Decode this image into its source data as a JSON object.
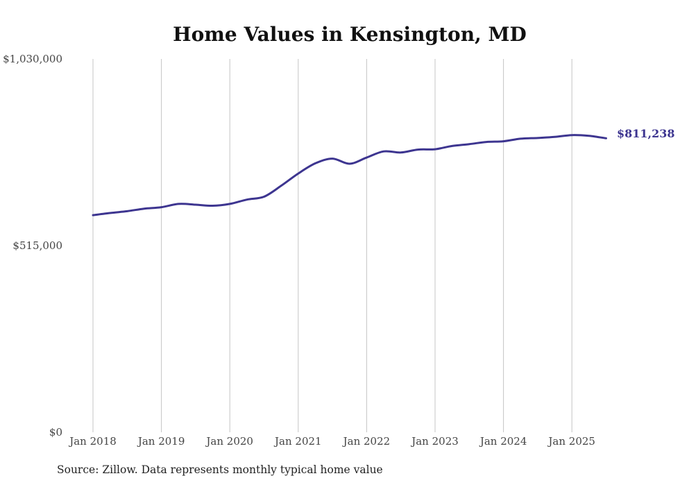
{
  "colors": {
    "line": "#3d3590",
    "grid": "#c4c4c4",
    "text": "#444444",
    "title": "#111111"
  },
  "chart_data": {
    "type": "line",
    "title": "Home Values in Kensington, MD",
    "xlabel": "",
    "ylabel": "",
    "ylim": [
      0,
      1030000
    ],
    "yticks": [
      0,
      515000,
      1030000
    ],
    "ytick_labels": [
      "$0",
      "$515,000",
      "$1,030,000"
    ],
    "xticks": [
      "2018-01",
      "2019-01",
      "2020-01",
      "2021-01",
      "2022-01",
      "2023-01",
      "2024-01",
      "2025-01"
    ],
    "xtick_labels": [
      "Jan 2018",
      "Jan 2019",
      "Jan 2020",
      "Jan 2021",
      "Jan 2022",
      "Jan 2023",
      "Jan 2024",
      "Jan 2025"
    ],
    "grid": "vertical",
    "legend": "none",
    "end_label": "$811,238",
    "series": [
      {
        "x": [
          "2018-01",
          "2018-04",
          "2018-07",
          "2018-10",
          "2019-01",
          "2019-04",
          "2019-07",
          "2019-10",
          "2020-01",
          "2020-04",
          "2020-07",
          "2020-10",
          "2021-01",
          "2021-04",
          "2021-07",
          "2021-10",
          "2022-01",
          "2022-04",
          "2022-07",
          "2022-10",
          "2023-01",
          "2023-04",
          "2023-07",
          "2023-10",
          "2024-01",
          "2024-04",
          "2024-07",
          "2024-10",
          "2025-01",
          "2025-04",
          "2025-07"
        ],
        "values": [
          599000,
          605000,
          610000,
          617000,
          621000,
          630000,
          628000,
          625000,
          630000,
          642000,
          650000,
          680000,
          714000,
          742000,
          755000,
          741000,
          758000,
          775000,
          772000,
          780000,
          781000,
          790000,
          795000,
          801000,
          803000,
          810000,
          812000,
          815000,
          820000,
          818000,
          811238
        ]
      }
    ]
  },
  "footer": {
    "source": "Source: Zillow. Data represents monthly typical home value"
  }
}
